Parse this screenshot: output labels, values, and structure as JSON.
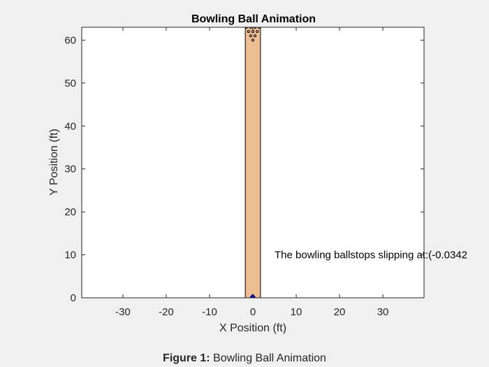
{
  "figure": {
    "caption_label": "Figure 1:",
    "caption_text": "Bowling Ball Animation"
  },
  "chart_data": {
    "type": "scatter",
    "title": "Bowling Ball Animation",
    "xlabel": "X Position (ft)",
    "ylabel": "Y Position (ft)",
    "xlim": [
      -39.5,
      39.5
    ],
    "ylim": [
      0,
      63
    ],
    "xticks": [
      -30,
      -20,
      -10,
      0,
      10,
      20,
      30
    ],
    "yticks": [
      0,
      10,
      20,
      30,
      40,
      50,
      60
    ],
    "grid": false,
    "lane": {
      "x": [
        -1.75,
        1.75
      ],
      "y": [
        0,
        63
      ],
      "color": "#edbd93"
    },
    "ball": {
      "x": -0.0342,
      "y": 0.2,
      "color": "#0000cc"
    },
    "pins": [
      {
        "x": 0,
        "y": 60
      },
      {
        "x": -0.5,
        "y": 61
      },
      {
        "x": 0.5,
        "y": 61
      },
      {
        "x": -1,
        "y": 62
      },
      {
        "x": 0,
        "y": 62
      },
      {
        "x": 1,
        "y": 62
      },
      {
        "x": -1.5,
        "y": 63
      },
      {
        "x": -0.5,
        "y": 63
      },
      {
        "x": 0.5,
        "y": 63
      },
      {
        "x": 1.5,
        "y": 63
      }
    ],
    "annotation": {
      "text": "The bowling ballstops slipping at:(-0.0342",
      "x": 5,
      "y": 10
    }
  }
}
